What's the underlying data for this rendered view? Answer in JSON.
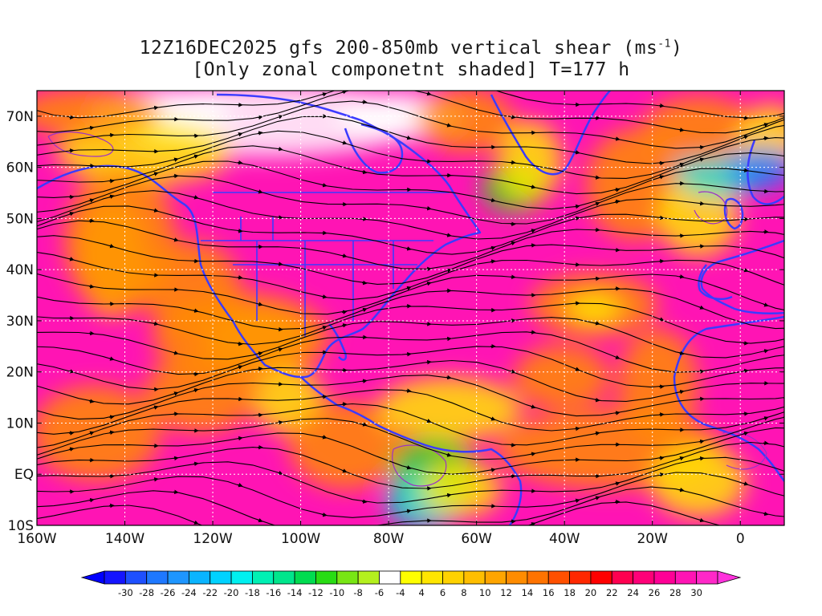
{
  "title": {
    "line1_main": "12Z16DEC2025 gfs 200-850mb vertical shear (ms",
    "line1_sup": "-1",
    "line1_end": ")",
    "line2": "[Only zonal componetnt shaded] T=177 h"
  },
  "axes": {
    "lat_labels": [
      "70N",
      "60N",
      "50N",
      "40N",
      "30N",
      "20N",
      "10N",
      "EQ",
      "10S"
    ],
    "lon_labels": [
      "160W",
      "140W",
      "120W",
      "100W",
      "80W",
      "60W",
      "40W",
      "20W",
      "0"
    ]
  },
  "colorbar": {
    "labels": [
      "-30",
      "-28",
      "-26",
      "-24",
      "-22",
      "-20",
      "-18",
      "-16",
      "-14",
      "-12",
      "-10",
      "-8",
      "-6",
      "-4",
      "4",
      "6",
      "8",
      "10",
      "12",
      "14",
      "16",
      "18",
      "20",
      "22",
      "24",
      "26",
      "28",
      "30"
    ],
    "colors": [
      "#1414ff",
      "#1e50ff",
      "#1e78ff",
      "#1e96ff",
      "#0ab4ff",
      "#00d2ff",
      "#00f0f0",
      "#00f0b4",
      "#00e68c",
      "#00dc50",
      "#28dc14",
      "#78e614",
      "#b4f01e",
      "#ffffff",
      "#ffff00",
      "#ffe600",
      "#ffd200",
      "#ffbe00",
      "#ffa500",
      "#ff8c00",
      "#ff7300",
      "#ff5000",
      "#ff2800",
      "#ff0000",
      "#ff0050",
      "#ff0078",
      "#ff0096",
      "#ff14b4",
      "#ff28c8"
    ],
    "end_low": "#0000ff",
    "end_high": "#ff32dc"
  },
  "map": {
    "region": "160W-10E, 10S-75N",
    "shading": "zonal vertical shear",
    "vectors": "streamlines",
    "colors": {
      "coastline": "#3b3bff",
      "contour": "#9b30c8",
      "streamline": "#000000",
      "grid": "#ffffff"
    }
  }
}
